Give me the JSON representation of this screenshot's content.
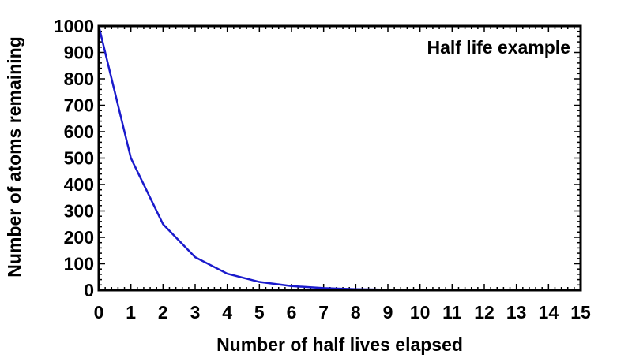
{
  "chart_data": {
    "type": "line",
    "title": "Half life example",
    "xlabel": "Number of half lives elapsed",
    "ylabel": "Number of atoms remaining",
    "xlim": [
      0,
      15
    ],
    "ylim": [
      0,
      1000
    ],
    "x_ticks": [
      "0",
      "1",
      "2",
      "3",
      "4",
      "5",
      "6",
      "7",
      "8",
      "9",
      "10",
      "11",
      "12",
      "13",
      "14",
      "15"
    ],
    "y_ticks": [
      "0",
      "100",
      "200",
      "300",
      "400",
      "500",
      "600",
      "700",
      "800",
      "900",
      "1000"
    ],
    "grid": false,
    "legend": "none",
    "series": [
      {
        "color": "#1a1acc",
        "x": [
          0,
          1,
          2,
          3,
          4,
          5,
          6,
          7,
          8,
          9,
          10,
          11,
          12,
          13,
          14,
          15
        ],
        "y": [
          1000,
          500,
          250,
          125,
          62.5,
          31.25,
          15.63,
          7.81,
          3.91,
          1.95,
          0.98,
          0.49,
          0.24,
          0.12,
          0.06,
          0.03
        ]
      }
    ]
  }
}
